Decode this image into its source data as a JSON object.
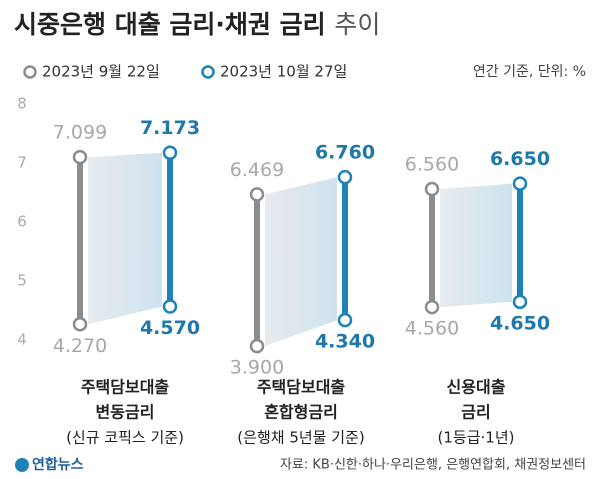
{
  "chart_data": {
    "type": "range-bar",
    "title": [
      "시중은행 대출 금리·채권 금리",
      "추이"
    ],
    "note": "연간 기준, 단위: %",
    "source": "자료: KB·신한·하나·우리은행, 은행연합회, 채권정보센터",
    "logo": "연합뉴스",
    "categories": [
      [
        "주택담보대출",
        "변동금리",
        "(신규 코픽스 기준)"
      ],
      [
        "주택담보대출",
        "혼합형금리",
        "(은행채 5년물 기준)"
      ],
      [
        "신용대출",
        "금리",
        "(1등급·1년)"
      ]
    ],
    "series": [
      {
        "name": "2023년 9월 22일",
        "color": "#8c8c8c",
        "label_color": "#a8a8a8",
        "values": [
          [
            4.27,
            7.099
          ],
          [
            3.9,
            6.469
          ],
          [
            4.56,
            6.56
          ]
        ],
        "value_labels": [
          [
            "4.270",
            "7.099"
          ],
          [
            "3.900",
            "6.469"
          ],
          [
            "4.560",
            "6.560"
          ]
        ]
      },
      {
        "name": "2023년 10월 27일",
        "color": "#1f82b6",
        "label_color": "#1f78aa",
        "values": [
          [
            4.57,
            7.173
          ],
          [
            4.34,
            6.76
          ],
          [
            4.65,
            6.65
          ]
        ],
        "value_labels": [
          [
            "4.570",
            "7.173"
          ],
          [
            "4.340",
            "6.760"
          ],
          [
            "4.650",
            "6.650"
          ]
        ]
      }
    ],
    "ylim": [
      3.75,
      8.15
    ],
    "yticks": [
      4,
      5,
      6,
      7,
      8
    ],
    "grid": false
  }
}
